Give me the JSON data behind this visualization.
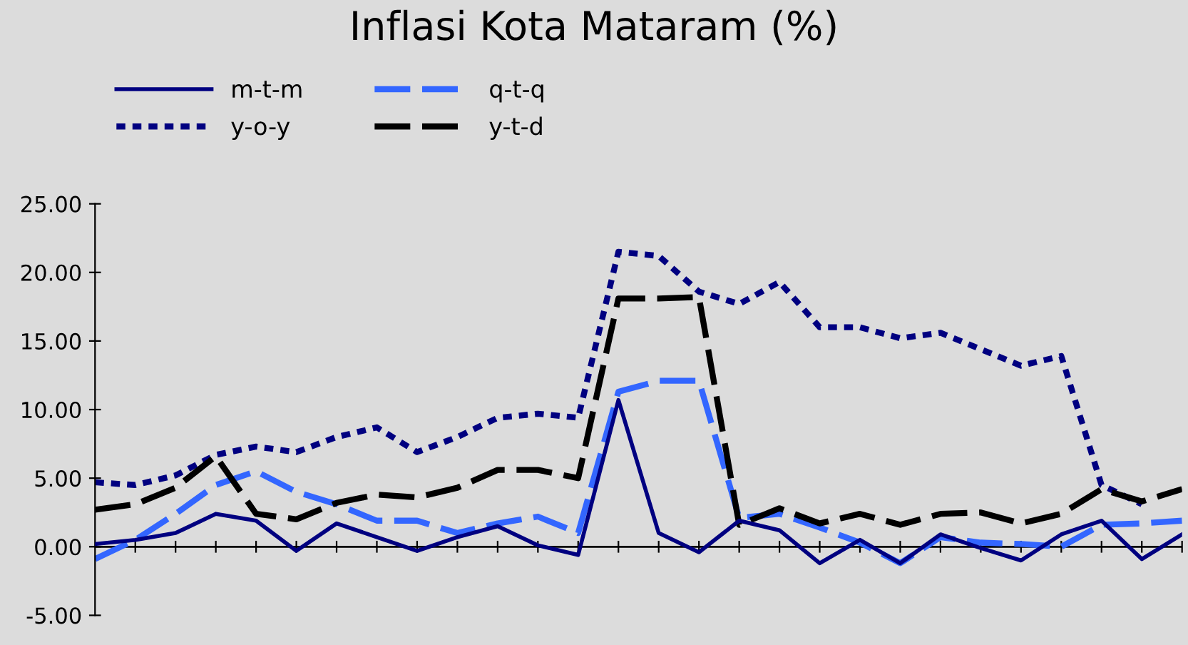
{
  "chart_data": {
    "type": "line",
    "title": "Inflasi Kota Mataram (%)",
    "categories": [
      null,
      null,
      null,
      null,
      null,
      null,
      null,
      null,
      null,
      null,
      null,
      null,
      null,
      null,
      null,
      null,
      null,
      null,
      null,
      null,
      null,
      null,
      null,
      null,
      null,
      null,
      null,
      null
    ],
    "series": [
      {
        "name": "m-t-m",
        "color": "#000080",
        "line_style": "solid",
        "values": [
          0.2,
          0.5,
          1.0,
          2.4,
          1.9,
          -0.3,
          1.7,
          0.7,
          -0.3,
          0.7,
          1.5,
          0.1,
          -0.6,
          10.7,
          1.0,
          -0.4,
          1.9,
          1.2,
          -1.2,
          0.5,
          -1.2,
          0.9,
          -0.1,
          -1.0,
          0.9,
          1.9,
          -0.9,
          0.9
        ]
      },
      {
        "name": "q-t-q",
        "color": "#3366ff",
        "line_style": "dashed",
        "values": [
          -0.9,
          0.5,
          2.4,
          4.5,
          5.5,
          4.0,
          3.1,
          1.9,
          1.9,
          1.0,
          1.7,
          2.2,
          1.0,
          11.3,
          12.1,
          12.1,
          2.1,
          2.4,
          1.4,
          0.3,
          -1.2,
          0.7,
          0.3,
          0.2,
          0.0,
          1.6,
          1.7,
          1.9
        ]
      },
      {
        "name": "y-o-y",
        "color": "#000080",
        "line_style": "dotted",
        "values": [
          4.7,
          4.5,
          5.2,
          6.7,
          7.3,
          6.9,
          8.0,
          8.7,
          6.9,
          8.0,
          9.4,
          9.7,
          9.4,
          21.5,
          21.2,
          18.6,
          17.7,
          19.3,
          16.0,
          16.0,
          15.2,
          15.6,
          14.4,
          13.2,
          13.9,
          4.5,
          3.1,
          null
        ]
      },
      {
        "name": "y-t-d",
        "color": "#000000",
        "line_style": "dashed",
        "values": [
          2.7,
          3.1,
          4.3,
          6.6,
          2.4,
          2.0,
          3.2,
          3.8,
          3.6,
          4.3,
          5.6,
          5.6,
          5.0,
          18.1,
          18.1,
          18.2,
          1.6,
          2.8,
          1.7,
          2.4,
          1.6,
          2.4,
          2.5,
          1.7,
          2.4,
          4.2,
          3.3,
          4.2
        ]
      }
    ],
    "ylim": [
      -5,
      25
    ],
    "yticks": [
      {
        "value": -5,
        "label": "-5.00"
      },
      {
        "value": 0,
        "label": "0.00"
      },
      {
        "value": 5,
        "label": "5.00"
      },
      {
        "value": 10,
        "label": "10.00"
      },
      {
        "value": 15,
        "label": "15.00"
      },
      {
        "value": 20,
        "label": "20.00"
      },
      {
        "value": 25,
        "label": "25.00"
      }
    ],
    "ref_lines": [
      {
        "axis": "y",
        "value": 0,
        "color": "#000000"
      }
    ],
    "grid": false,
    "legend": "top left",
    "tick_labels": "y",
    "marker": "none"
  }
}
